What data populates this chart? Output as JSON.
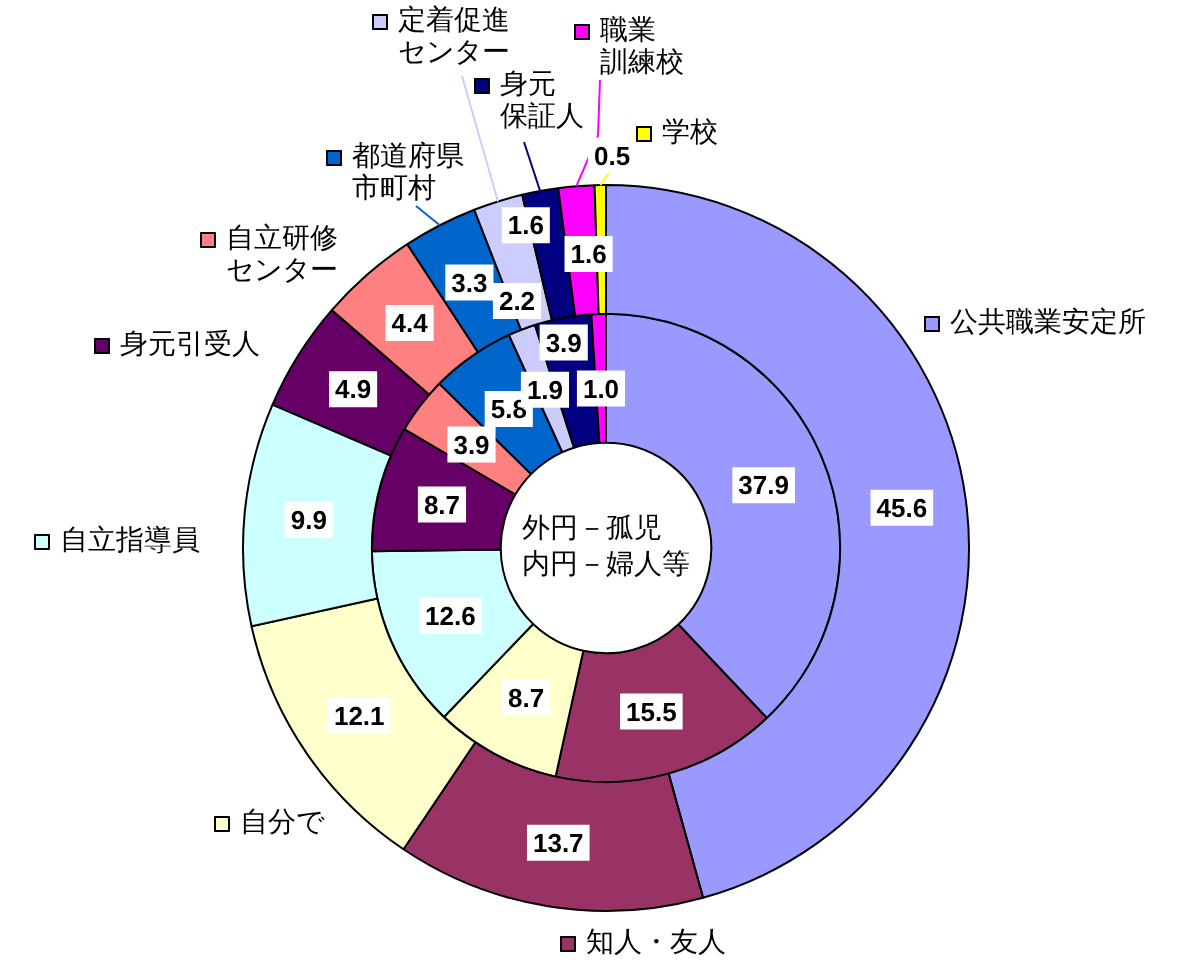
{
  "chart_data": {
    "type": "donut",
    "categories": [
      "公共職業安定所",
      "知人・友人",
      "自分で",
      "自立指導員",
      "身元引受人",
      "自立研修センター",
      "都道府県市町村",
      "定着促進センター",
      "身元保証人",
      "職業訓練校",
      "学校"
    ],
    "colors": [
      "#9999ff",
      "#993366",
      "#ffffcc",
      "#ccffff",
      "#660066",
      "#ff8080",
      "#0066cc",
      "#ccccff",
      "#000080",
      "#ff00ff",
      "#ffff00"
    ],
    "series": [
      {
        "values": [
          45.6,
          13.7,
          12.1,
          9.9,
          4.9,
          4.4,
          3.3,
          2.2,
          1.6,
          1.6,
          0.5
        ],
        "value_labels": [
          "45.6",
          "13.7",
          "12.1",
          "9.9",
          "4.9",
          "4.4",
          "3.3",
          "2.2",
          "1.6",
          "1.6",
          "0.5"
        ]
      },
      {
        "values": [
          37.9,
          15.5,
          8.7,
          12.6,
          8.7,
          3.9,
          5.8,
          1.9,
          3.9,
          1.0,
          null
        ],
        "value_labels": [
          "37.9",
          "15.5",
          "8.7",
          "12.6",
          "8.7",
          "3.9",
          "5.8",
          "1.9",
          "3.9",
          "1.0",
          null
        ]
      }
    ],
    "annotations": [
      "外円－孤児",
      "内円－婦人等"
    ],
    "legend": "top left"
  }
}
